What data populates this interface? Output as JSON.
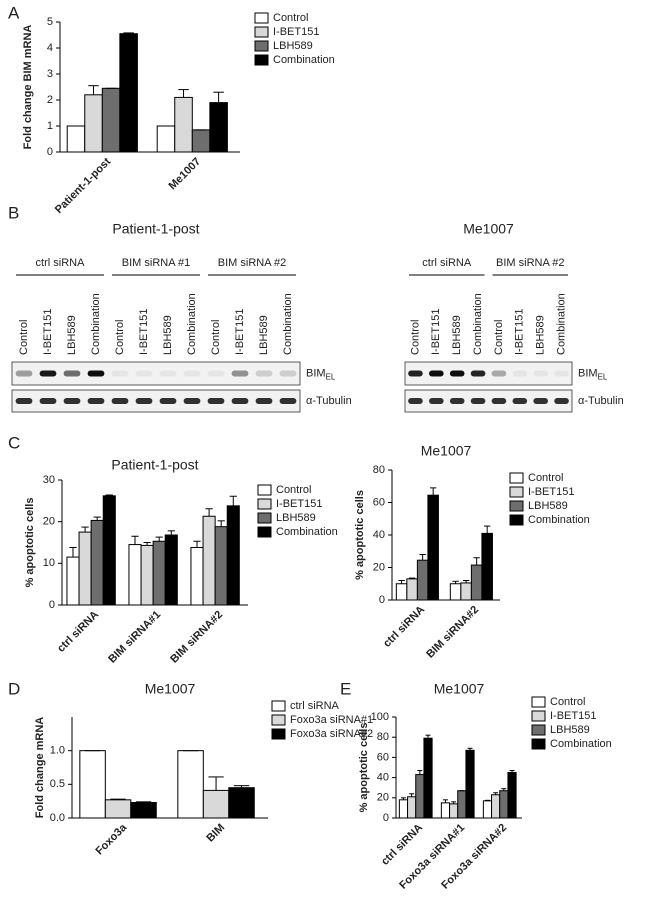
{
  "panels": [
    "A",
    "B",
    "C",
    "D",
    "E"
  ],
  "blots": [
    {
      "title": "Patient-1-post",
      "groups": [
        "ctrl siRNA",
        "BIM siRNA #1",
        "BIM siRNA #2"
      ],
      "lanes": [
        "Control",
        "I-BET151",
        "LBH589",
        "Combination",
        "Control",
        "I-BET151",
        "LBH589",
        "Combination",
        "Control",
        "I-BET151",
        "LBH589",
        "Combination"
      ],
      "rows": [
        {
          "main": "BIM",
          "sub": "EL"
        },
        {
          "main": "α-Tubulin"
        }
      ]
    },
    {
      "title": "Me1007",
      "groups": [
        "ctrl siRNA",
        "BIM siRNA #2"
      ],
      "lanes": [
        "Control",
        "I-BET151",
        "LBH589",
        "Combination",
        "Control",
        "I-BET151",
        "LBH589",
        "Combination"
      ],
      "rows": [
        {
          "main": "BIM",
          "sub": "EL"
        },
        {
          "main": "α-Tubulin"
        }
      ]
    }
  ],
  "chart_data": [
    {
      "type": "bar",
      "y_label": "Fold change BIM mRNA",
      "categories": [
        "Patient-1-post",
        "Me1007"
      ],
      "ylim": [
        0,
        5
      ],
      "yticks": [
        0,
        1,
        2,
        3,
        4,
        5
      ],
      "legend": "top-right",
      "series": [
        {
          "name": "Control",
          "color": "#ffffff",
          "values": [
            1,
            1
          ],
          "errors": [
            0,
            0
          ]
        },
        {
          "name": "I-BET151",
          "color": "#d9d9d9",
          "values": [
            2.2,
            2.1
          ],
          "errors": [
            0.35,
            0.3
          ]
        },
        {
          "name": "LBH589",
          "color": "#6e6e6e",
          "values": [
            2.45,
            0.85
          ],
          "errors": [
            0,
            0
          ]
        },
        {
          "name": "Combination",
          "color": "#000000",
          "values": [
            4.55,
            1.9
          ],
          "errors": [
            0.03,
            0.4
          ]
        }
      ]
    },
    {
      "type": "bar",
      "title": "Patient-1-post",
      "y_label": "% apoptotic cells",
      "categories": [
        "ctrl siRNA",
        "BIM siRNA#1",
        "BIM siRNA#2"
      ],
      "ylim": [
        0,
        30
      ],
      "yticks": [
        0,
        10,
        20,
        30
      ],
      "legend": "top-right",
      "series": [
        {
          "name": "Control",
          "color": "#ffffff",
          "values": [
            11.5,
            14.5,
            13.8
          ],
          "errors": [
            2.3,
            2,
            1.5
          ]
        },
        {
          "name": "I-BET151",
          "color": "#d9d9d9",
          "values": [
            17.5,
            14.3,
            21.3
          ],
          "errors": [
            1.2,
            0.7,
            1.8
          ]
        },
        {
          "name": "LBH589",
          "color": "#6e6e6e",
          "values": [
            20.3,
            15.3,
            18.8
          ],
          "errors": [
            0.8,
            1,
            1.4
          ]
        },
        {
          "name": "Combination",
          "color": "#000000",
          "values": [
            26.2,
            16.8,
            23.8
          ],
          "errors": [
            0.2,
            1,
            2.3
          ]
        }
      ]
    },
    {
      "type": "bar",
      "title": "Me1007",
      "y_label": "% apoptotic cells",
      "categories": [
        "ctrl siRNA",
        "BIM siRNA#2"
      ],
      "ylim": [
        0,
        80
      ],
      "yticks": [
        0,
        20,
        40,
        60,
        80
      ],
      "legend": "top-right",
      "series": [
        {
          "name": "Control",
          "color": "#ffffff",
          "values": [
            10,
            10
          ],
          "errors": [
            2,
            1.5
          ]
        },
        {
          "name": "I-BET151",
          "color": "#d9d9d9",
          "values": [
            13,
            10.5
          ],
          "errors": [
            0.5,
            1.5
          ]
        },
        {
          "name": "LBH589",
          "color": "#6e6e6e",
          "values": [
            24.5,
            21.5
          ],
          "errors": [
            3.5,
            4.5
          ]
        },
        {
          "name": "Combination",
          "color": "#000000",
          "values": [
            64.5,
            41
          ],
          "errors": [
            4.5,
            4.5
          ]
        }
      ]
    },
    {
      "type": "bar",
      "title": "Me1007",
      "y_label": "Fold change mRNA",
      "categories": [
        "Foxo3a",
        "BIM"
      ],
      "ylim": [
        0,
        1.5
      ],
      "yticks": [
        {
          "value": 0,
          "label": "0.0"
        },
        {
          "value": 0.5,
          "label": "0.5"
        },
        {
          "value": 1,
          "label": "1.0"
        }
      ],
      "legend": "top-right",
      "series": [
        {
          "name": "ctrl siRNA",
          "color": "#ffffff",
          "values": [
            1,
            1
          ],
          "errors": [
            0,
            0
          ]
        },
        {
          "name": "Foxo3a siRNA#1",
          "color": "#d9d9d9",
          "values": [
            0.27,
            0.41
          ],
          "errors": [
            0.01,
            0.2
          ]
        },
        {
          "name": "Foxo3a siRNA#2",
          "color": "#000000",
          "values": [
            0.23,
            0.45
          ],
          "errors": [
            0.01,
            0.03
          ]
        }
      ]
    },
    {
      "type": "bar",
      "title": "Me1007",
      "y_label": "% apoptotic cells",
      "categories": [
        "ctrl siRNA",
        "Foxo3a siRNA#1",
        "Foxo3a siRNA#2"
      ],
      "ylim": [
        0,
        100
      ],
      "yticks": [
        0,
        20,
        40,
        60,
        80,
        100
      ],
      "legend": "top-right",
      "series": [
        {
          "name": "Control",
          "color": "#ffffff",
          "values": [
            18,
            15,
            17
          ],
          "errors": [
            2,
            3,
            0.5
          ]
        },
        {
          "name": "I-BET151",
          "color": "#d9d9d9",
          "values": [
            21,
            14,
            23
          ],
          "errors": [
            3,
            2,
            2
          ]
        },
        {
          "name": "LBH589",
          "color": "#6e6e6e",
          "values": [
            43,
            27,
            27
          ],
          "errors": [
            4,
            0,
            2
          ]
        },
        {
          "name": "Combination",
          "color": "#000000",
          "values": [
            79,
            67,
            45
          ],
          "errors": [
            3,
            2,
            2
          ]
        }
      ]
    }
  ]
}
